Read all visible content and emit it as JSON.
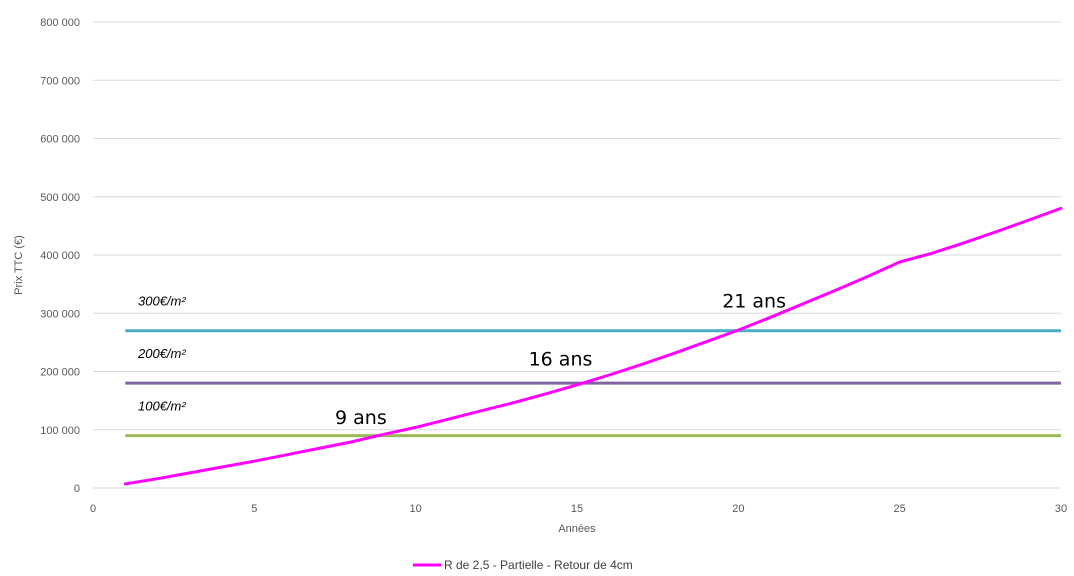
{
  "chart_data": {
    "type": "line",
    "title": "",
    "xlabel": "Années",
    "ylabel": "Prix TTC (€)",
    "xlim": [
      0,
      30
    ],
    "ylim": [
      0,
      800000
    ],
    "x_ticks": [
      0,
      5,
      10,
      15,
      20,
      25,
      30
    ],
    "y_ticks": [
      0,
      100000,
      200000,
      300000,
      400000,
      500000,
      600000,
      700000,
      800000
    ],
    "y_tick_labels": [
      "0",
      "100 000",
      "200 000",
      "300 000",
      "400 000",
      "500 000",
      "600 000",
      "700 000",
      "800 000"
    ],
    "x_tick_labels": [
      "0",
      "5",
      "10",
      "15",
      "20",
      "25",
      "30"
    ],
    "grid": "horizontal",
    "legend_position": "bottom",
    "series": [
      {
        "name": "R de 2,5 - Partielle - Retour de 4cm",
        "color": "#ff00ff",
        "x": [
          1,
          2,
          3,
          4,
          5,
          6,
          7,
          8,
          9,
          10,
          11,
          12,
          13,
          14,
          15,
          16,
          17,
          18,
          19,
          20,
          21,
          22,
          23,
          24,
          25,
          26,
          27,
          28,
          29,
          30
        ],
        "values": [
          7000,
          16000,
          26000,
          36000,
          46000,
          57000,
          68000,
          79000,
          92000,
          104000,
          118000,
          132000,
          146000,
          161000,
          177000,
          194000,
          212000,
          231000,
          251000,
          271000,
          293000,
          316000,
          339000,
          363000,
          388000,
          403000,
          421000,
          440000,
          460000,
          480000
        ]
      }
    ],
    "thresholds": [
      {
        "label": "300€/m²",
        "value": 270000,
        "color": "#4bacc6"
      },
      {
        "label": "200€/m²",
        "value": 180000,
        "color": "#8064a2"
      },
      {
        "label": "100€/m²",
        "value": 90000,
        "color": "#9bbb59"
      }
    ],
    "annotations": [
      {
        "text": "21 ans",
        "x": 19.5,
        "y": 310000
      },
      {
        "text": "16 ans",
        "x": 13.5,
        "y": 210000
      },
      {
        "text": "9 ans",
        "x": 7.5,
        "y": 110000
      }
    ],
    "x_range_line": [
      1,
      30
    ]
  }
}
